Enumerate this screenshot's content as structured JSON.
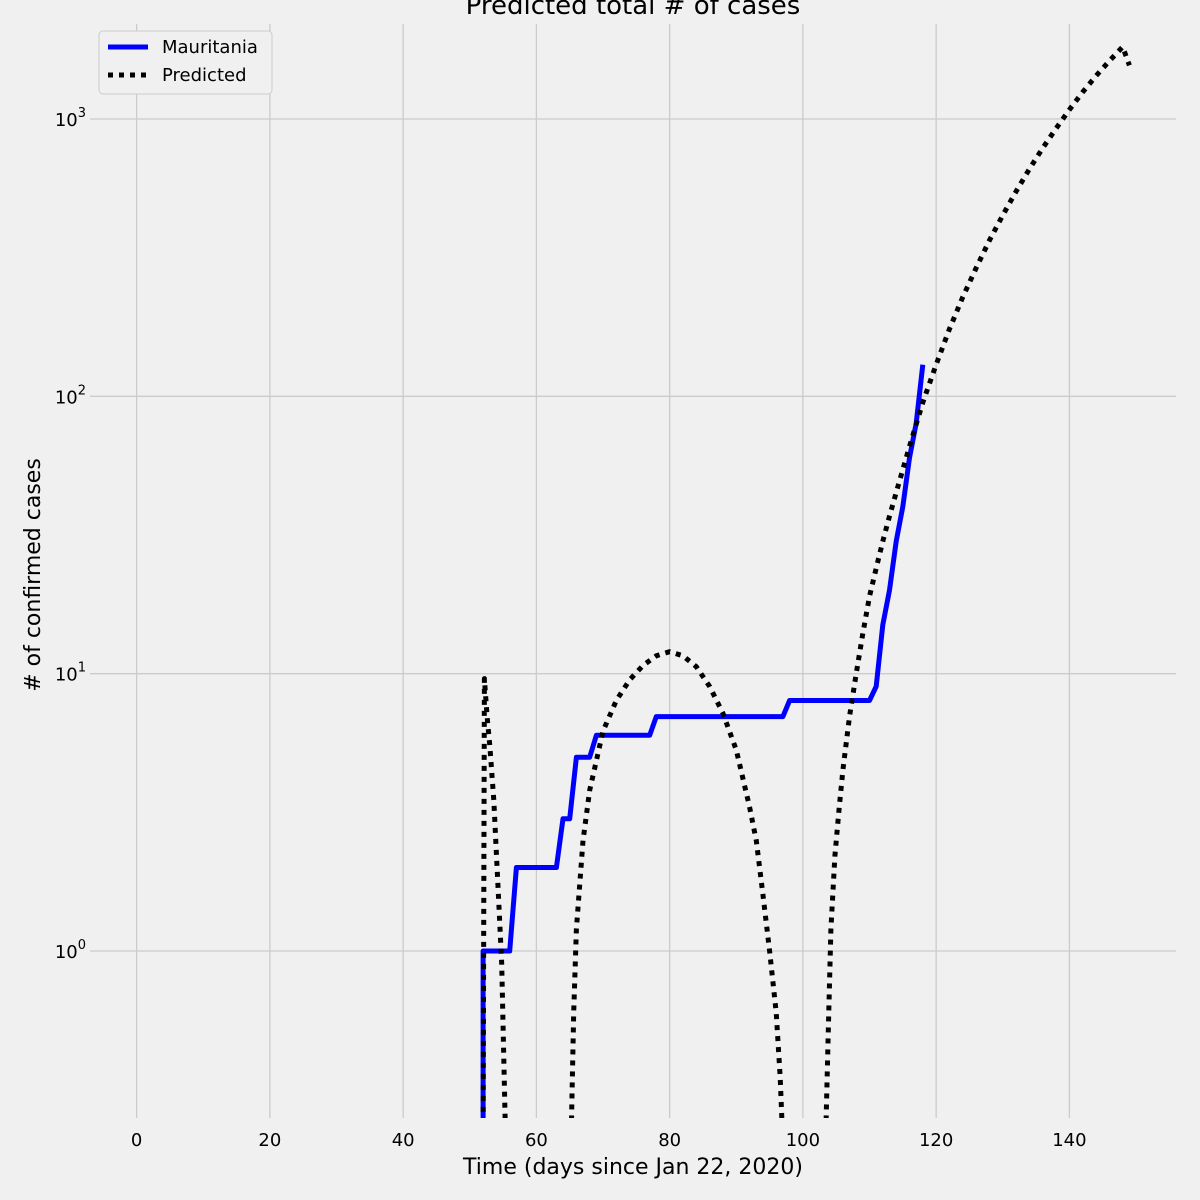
{
  "chart_data": {
    "type": "line",
    "title": "Predicted total # of cases",
    "xlabel": "Time (days since Jan 22, 2020)",
    "ylabel": "# of confirmed cases",
    "xlim": [
      -7,
      156
    ],
    "ylim": [
      0.25,
      2200
    ],
    "yscale": "log",
    "grid": true,
    "legend": "top-left",
    "x_ticks": [
      0,
      20,
      40,
      60,
      80,
      100,
      120,
      140
    ],
    "y_ticks": [
      {
        "value": 1,
        "base": "10",
        "exp": "0"
      },
      {
        "value": 10,
        "base": "10",
        "exp": "1"
      },
      {
        "value": 100,
        "base": "10",
        "exp": "2"
      },
      {
        "value": 1000,
        "base": "10",
        "exp": "3"
      }
    ],
    "series": [
      {
        "name": "Mauritania",
        "color": "#0000ff",
        "style": "solid",
        "x": [
          52,
          52,
          56,
          57,
          63,
          64,
          65,
          66,
          68,
          69,
          77,
          78,
          97,
          98,
          110,
          111,
          112,
          113,
          114,
          115,
          116,
          117,
          118
        ],
        "y": [
          0.2,
          1,
          1,
          2,
          2,
          3,
          3,
          5,
          5,
          6,
          6,
          7,
          7,
          8,
          8,
          9,
          15,
          20,
          30,
          40,
          60,
          80,
          130
        ]
      },
      {
        "name": "Predicted",
        "color": "#000000",
        "style": "dotted",
        "x": [
          52,
          52.2,
          52.6,
          53,
          53.6,
          54.2,
          54.8,
          55.4,
          65.2,
          65.6,
          66,
          67,
          68,
          70,
          72,
          74,
          76,
          78,
          80,
          82,
          84,
          86,
          88,
          90,
          92,
          93,
          94,
          95,
          96,
          96.6,
          97,
          103.4,
          103.8,
          104.2,
          104.8,
          105.4,
          106,
          107,
          108,
          109,
          110,
          111,
          112,
          113,
          114,
          116,
          118,
          120,
          122,
          124,
          126,
          128,
          130,
          132,
          134,
          136,
          138,
          140,
          142,
          144,
          146,
          148,
          149
        ],
        "y": [
          0.2,
          9.6,
          7,
          5.5,
          3.5,
          1.8,
          0.9,
          0.2,
          0.2,
          0.6,
          1.2,
          2.5,
          3.8,
          6.2,
          8,
          9.5,
          10.7,
          11.6,
          12,
          11.6,
          10.6,
          9,
          7.2,
          5.3,
          3.3,
          2.5,
          1.6,
          1,
          0.6,
          0.35,
          0.2,
          0.2,
          0.5,
          1.2,
          2.2,
          3.2,
          4.5,
          7,
          10,
          14,
          19,
          24,
          30,
          37,
          45,
          66,
          95,
          130,
          175,
          228,
          290,
          365,
          450,
          548,
          660,
          785,
          925,
          1080,
          1250,
          1430,
          1620,
          1820,
          1560
        ]
      }
    ]
  }
}
